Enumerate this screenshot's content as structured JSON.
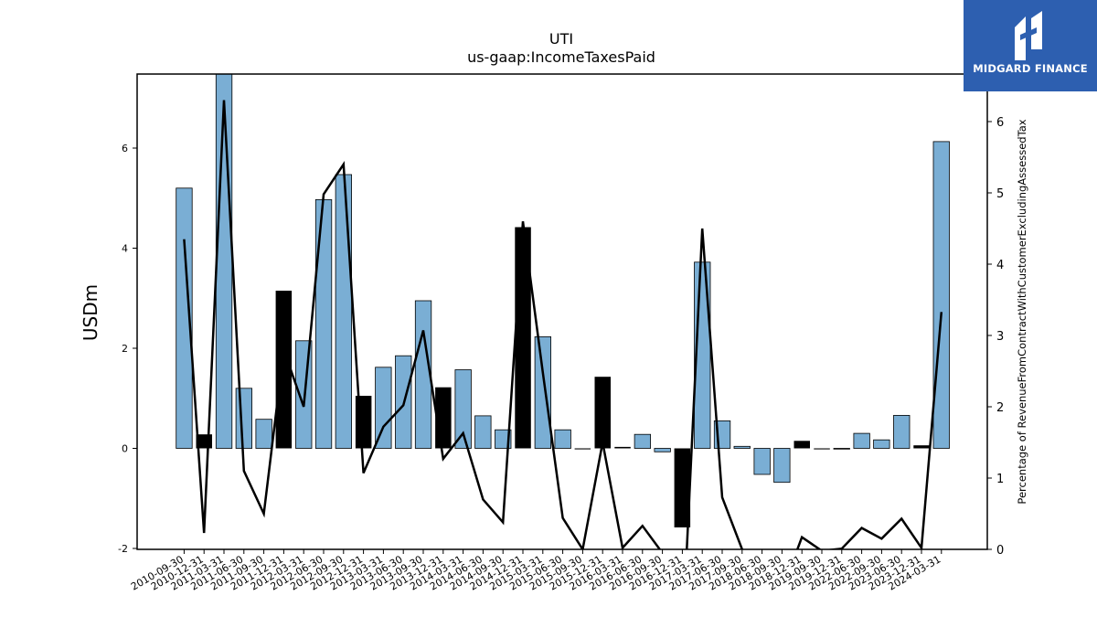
{
  "chart_data": {
    "type": "bar",
    "title": "UTI",
    "subtitle": "us-gaap:IncomeTaxesPaid",
    "ylabel": "USDm",
    "y2label": "Percentage of RevenueFromContractWithCustomerExcludingAssessedTax",
    "ylim": [
      -2,
      7.5
    ],
    "y2lim": [
      0,
      6.3
    ],
    "yticks": [
      "-2",
      "0",
      "2",
      "4",
      "6"
    ],
    "y2ticks": [
      "0",
      "1",
      "2",
      "3",
      "4",
      "5",
      "6"
    ],
    "categories": [
      "2010-09-30",
      "2010-12-31",
      "2011-03-31",
      "2011-06-30",
      "2011-09-30",
      "2011-12-31",
      "2012-03-31",
      "2012-06-30",
      "2012-09-30",
      "2012-12-31",
      "2013-03-31",
      "2013-06-30",
      "2013-09-30",
      "2013-12-31",
      "2014-03-31",
      "2014-06-30",
      "2014-09-30",
      "2014-12-31",
      "2015-03-31",
      "2015-06-30",
      "2015-09-30",
      "2015-12-31",
      "2016-03-31",
      "2016-06-30",
      "2016-09-30",
      "2016-12-31",
      "2017-03-31",
      "2017-06-30",
      "2017-09-30",
      "2018-06-30",
      "2018-09-30",
      "2018-12-31",
      "2019-09-30",
      "2019-12-31",
      "2022-06-30",
      "2022-09-30",
      "2023-06-30",
      "2023-12-31",
      "2024-03-31"
    ],
    "series": [
      {
        "values": [
          5.2,
          0.28,
          7.6,
          1.2,
          0.58,
          3.15,
          2.15,
          4.97,
          5.47,
          1.05,
          1.62,
          1.85,
          2.95,
          1.22,
          1.57,
          0.65,
          0.37,
          4.42,
          2.23,
          0.37,
          -0.02,
          1.43,
          0.03,
          0.28,
          -0.07,
          -1.58,
          3.72,
          0.55,
          0.04,
          -0.52,
          -0.68,
          0.15,
          -0.02,
          -0.01,
          0.3,
          0.17,
          0.66,
          0.06,
          6.13
        ],
        "highlight": [
          false,
          true,
          false,
          false,
          false,
          true,
          false,
          false,
          false,
          true,
          false,
          false,
          false,
          true,
          false,
          false,
          false,
          true,
          false,
          false,
          true,
          true,
          true,
          false,
          false,
          true,
          false,
          false,
          false,
          false,
          false,
          true,
          true,
          false,
          false,
          false,
          false,
          true,
          false
        ]
      },
      {
        "type": "line",
        "values": [
          4.35,
          0.23,
          6.3,
          1.1,
          0.5,
          2.8,
          2.0,
          4.98,
          5.4,
          1.07,
          1.72,
          2.02,
          3.07,
          1.27,
          1.63,
          0.7,
          0.38,
          4.6,
          2.48,
          0.44,
          0.0,
          1.5,
          0.02,
          0.33,
          -0.05,
          -1.3,
          4.5,
          0.73,
          0.0,
          -0.5,
          -0.58,
          0.17,
          -0.02,
          0.01,
          0.3,
          0.15,
          0.43,
          0.02,
          3.33
        ]
      }
    ],
    "colors": {
      "bar": "#7aaed4",
      "highlight": "#000000",
      "line": "#000000",
      "logo_bg": "#2d5fb0"
    }
  },
  "logo": {
    "text": "MIDGARD FINANCE",
    "icon": "midgard-logo-icon"
  }
}
